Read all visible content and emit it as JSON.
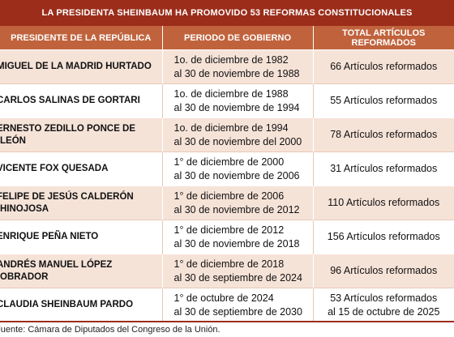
{
  "title": "LA PRESIDENTA SHEINBAUM HA PROMOVIDO 53 REFORMAS CONSTITUCIONALES",
  "headers": {
    "president": "PRESIDENTE DE LA REPÚBLICA",
    "period": "PERIODO DE GOBIERNO",
    "total": "TOTAL ARTÍCULOS REFORMADOS"
  },
  "rows": [
    {
      "name": "MIGUEL DE LA MADRID HURTADO",
      "period_start": "1o. de diciembre de 1982",
      "period_end": "al 30 de noviembre de 1988",
      "total": "66 Artículos reformados",
      "total_note": ""
    },
    {
      "name": "CARLOS SALINAS DE GORTARI",
      "period_start": "1o. de diciembre de 1988",
      "period_end": "al 30 de noviembre de 1994",
      "total": "55 Artículos reformados",
      "total_note": ""
    },
    {
      "name": "ERNESTO ZEDILLO PONCE DE LEÓN",
      "period_start": "1o. de diciembre de 1994",
      "period_end": "al 30 de noviembre del 2000",
      "total": "78 Artículos reformados",
      "total_note": ""
    },
    {
      "name": "VICENTE FOX QUESADA",
      "period_start": "1° de diciembre de 2000",
      "period_end": "al 30 de noviembre de 2006",
      "total": "31 Artículos reformados",
      "total_note": ""
    },
    {
      "name": "FELIPE DE JESÚS CALDERÓN HINOJOSA",
      "period_start": "1° de diciembre de 2006",
      "period_end": "al 30 de noviembre de 2012",
      "total": "110 Artículos reformados",
      "total_note": ""
    },
    {
      "name": "ENRIQUE PEÑA NIETO",
      "period_start": "1° de diciembre de 2012",
      "period_end": "al 30 de noviembre de 2018",
      "total": "156 Artículos reformados",
      "total_note": ""
    },
    {
      "name": "ANDRÉS MANUEL LÓPEZ OBRADOR",
      "period_start": "1° de diciembre de 2018",
      "period_end": "al 30 de septiembre de 2024",
      "total": "96 Artículos reformados",
      "total_note": ""
    },
    {
      "name": "CLAUDIA SHEINBAUM PARDO",
      "period_start": "1° de octubre de 2024",
      "period_end": "al 30 de septiembre de 2030",
      "total": "53 Artículos reformados",
      "total_note": "al 15 de octubre de 2025"
    }
  ],
  "footer": "Fuente: Cámara de Diputados del Congreso de la Unión."
}
